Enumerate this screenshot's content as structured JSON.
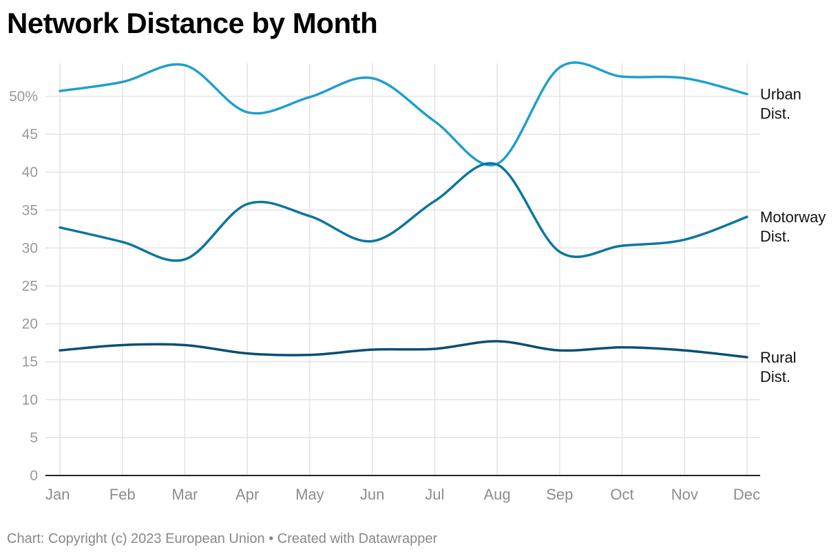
{
  "title": "Network Distance by Month",
  "footer": "Chart: Copyright (c) 2023 European Union • Created with Datawrapper",
  "chart_data": {
    "type": "line",
    "title": "Network Distance by Month",
    "xlabel": "",
    "ylabel": "",
    "categories": [
      "Jan",
      "Feb",
      "Mar",
      "Apr",
      "May",
      "Jun",
      "Jul",
      "Aug",
      "Sep",
      "Oct",
      "Nov",
      "Dec"
    ],
    "ylim": [
      0,
      55
    ],
    "yticks": [
      {
        "value": 0,
        "label": "0"
      },
      {
        "value": 5,
        "label": "5"
      },
      {
        "value": 10,
        "label": "10"
      },
      {
        "value": 15,
        "label": "15"
      },
      {
        "value": 20,
        "label": "20"
      },
      {
        "value": 25,
        "label": "25"
      },
      {
        "value": 30,
        "label": "30"
      },
      {
        "value": 35,
        "label": "35"
      },
      {
        "value": 40,
        "label": "40"
      },
      {
        "value": 45,
        "label": "45"
      },
      {
        "value": 50,
        "label": "50%"
      }
    ],
    "grid": true,
    "legend": "direct labels at right",
    "series": [
      {
        "name": "Urban Dist.",
        "label_lines": [
          "Urban",
          "Dist."
        ],
        "color": "#1e9fcf",
        "values": [
          50.7,
          51.9,
          54.1,
          47.9,
          49.9,
          52.4,
          46.7,
          41.1,
          53.8,
          52.6,
          52.4,
          50.3
        ]
      },
      {
        "name": "Motorway Dist.",
        "label_lines": [
          "Motorway",
          "Dist."
        ],
        "color": "#0a76a0",
        "values": [
          32.7,
          30.8,
          28.5,
          35.8,
          34.2,
          30.9,
          36.2,
          41.0,
          29.5,
          30.3,
          31.1,
          34.1
        ]
      },
      {
        "name": "Rural Dist.",
        "label_lines": [
          "Rural",
          "Dist."
        ],
        "color": "#064f72",
        "values": [
          16.5,
          17.2,
          17.2,
          16.1,
          15.9,
          16.6,
          16.7,
          17.7,
          16.5,
          16.9,
          16.5,
          15.6
        ]
      }
    ]
  }
}
